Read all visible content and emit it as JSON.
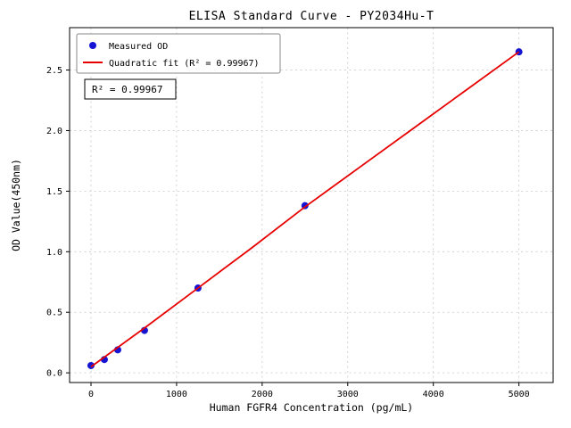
{
  "chart_data": {
    "type": "scatter",
    "title": "ELISA Standard Curve - PY2034Hu-T",
    "xlabel": "Human FGFR4 Concentration (pg/mL)",
    "ylabel": "OD Value(450nm)",
    "xlim": [
      -250,
      5400
    ],
    "ylim": [
      -0.08,
      2.85
    ],
    "xticks": [
      0,
      1000,
      2000,
      3000,
      4000,
      5000
    ],
    "yticks": [
      0.0,
      0.5,
      1.0,
      1.5,
      2.0,
      2.5
    ],
    "grid": true,
    "legend_position": "upper left",
    "annotation": "R² = 0.99967",
    "series": [
      {
        "name": "Measured OD",
        "type": "scatter",
        "color": "#1414d2",
        "x": [
          0,
          156.25,
          312.5,
          625,
          1250,
          2500,
          5000
        ],
        "y": [
          0.06,
          0.11,
          0.19,
          0.35,
          0.7,
          1.38,
          2.65
        ]
      },
      {
        "name": "Quadratic fit (R² = 0.99967)",
        "type": "line",
        "color": "#e60000",
        "x": [
          0,
          625,
          1250,
          1875,
          2500,
          3125,
          3750,
          4375,
          5000
        ],
        "y": [
          0.05,
          0.37,
          0.7,
          1.03,
          1.37,
          1.69,
          2.01,
          2.33,
          2.65
        ]
      }
    ]
  },
  "style": {
    "grid_color": "#c9c9c9",
    "axis_color": "#000000",
    "legend_border": "#8a8a8a",
    "annotation_border": "#000000"
  }
}
